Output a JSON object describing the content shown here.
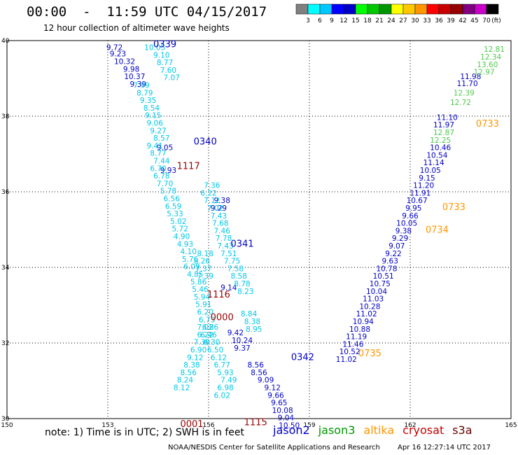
{
  "title": "00:00  -  11:59 UTC 04/15/2017",
  "subtitle": "12 hour collection of altimeter wave heights",
  "note": "note:  1) Time is in UTC; 2) SWH is in feet",
  "credit": "NOAA/NESDIS Center for Satellite Applications and Research",
  "stamp": "Apr 16 12:27:14 UTC 2017",
  "satellites": [
    {
      "name": "jason2",
      "color": "#0000c8"
    },
    {
      "name": "jason3",
      "color": "#009600"
    },
    {
      "name": "altika",
      "color": "#ff9600"
    },
    {
      "name": "cryosat",
      "color": "#c80000"
    },
    {
      "name": "s3a",
      "color": "#640000"
    }
  ],
  "legend": {
    "units": "(ft)",
    "ticks": [
      "3",
      "6",
      "9",
      "12",
      "15",
      "18",
      "21",
      "24",
      "27",
      "30",
      "33",
      "36",
      "39",
      "42",
      "45",
      "70"
    ],
    "colors": [
      "#808080",
      "#00ffff",
      "#00c8ff",
      "#0000ff",
      "#0000c8",
      "#00ff00",
      "#00c800",
      "#009600",
      "#ffff00",
      "#ffc800",
      "#ff9600",
      "#ff0000",
      "#c80000",
      "#960000",
      "#800080",
      "#c800c8",
      "#000000"
    ]
  },
  "chart_data": {
    "type": "scatter",
    "xlim": [
      150,
      165
    ],
    "ylim": [
      30,
      40
    ],
    "xticks": [
      "150",
      "153",
      "156",
      "159",
      "162",
      "165"
    ],
    "yticks": [
      "30",
      "32",
      "34",
      "36",
      "38",
      "40"
    ],
    "grid": true,
    "series": [
      {
        "name": "jason2",
        "color": "#0000c8",
        "points": [
          {
            "x": 153.2,
            "y": 39.75,
            "v": "9.72"
          },
          {
            "x": 153.3,
            "y": 39.58,
            "v": "9.23"
          },
          {
            "x": 153.5,
            "y": 39.38,
            "v": "10.32"
          },
          {
            "x": 153.7,
            "y": 39.18,
            "v": "9.98"
          },
          {
            "x": 153.8,
            "y": 38.98,
            "v": "10.37"
          },
          {
            "x": 153.9,
            "y": 38.78,
            "v": "9.39"
          },
          {
            "x": 156.4,
            "y": 35.7,
            "v": "9.38"
          },
          {
            "x": 156.3,
            "y": 35.5,
            "v": "9.29"
          },
          {
            "x": 156.6,
            "y": 33.4,
            "v": "9.14"
          },
          {
            "x": 157.4,
            "y": 31.35,
            "v": "8.56"
          },
          {
            "x": 157.5,
            "y": 31.15,
            "v": "8.56"
          },
          {
            "x": 157.7,
            "y": 30.95,
            "v": "9.09"
          },
          {
            "x": 157.9,
            "y": 30.75,
            "v": "9.12"
          },
          {
            "x": 158.0,
            "y": 30.55,
            "v": "9.66"
          },
          {
            "x": 158.1,
            "y": 30.35,
            "v": "9.65"
          },
          {
            "x": 158.2,
            "y": 30.15,
            "v": "10.08"
          },
          {
            "x": 158.3,
            "y": 29.95,
            "v": "9.04"
          },
          {
            "x": 158.4,
            "y": 29.75,
            "v": "10.50"
          },
          {
            "x": 157.0,
            "y": 32.0,
            "v": "10.24"
          },
          {
            "x": 157.0,
            "y": 31.8,
            "v": "9.37"
          },
          {
            "x": 156.8,
            "y": 32.2,
            "v": "9.42"
          },
          {
            "x": 154.7,
            "y": 37.1,
            "v": "9.05"
          },
          {
            "x": 154.8,
            "y": 36.5,
            "v": "9.93"
          },
          {
            "x": 163.1,
            "y": 37.9,
            "v": "11.10"
          },
          {
            "x": 163.0,
            "y": 37.7,
            "v": "11.97"
          },
          {
            "x": 162.9,
            "y": 37.1,
            "v": "10.46"
          },
          {
            "x": 162.8,
            "y": 36.9,
            "v": "10.54"
          },
          {
            "x": 162.7,
            "y": 36.7,
            "v": "11.14"
          },
          {
            "x": 162.6,
            "y": 36.5,
            "v": "10.05"
          },
          {
            "x": 162.5,
            "y": 36.3,
            "v": "9.15"
          },
          {
            "x": 162.4,
            "y": 36.1,
            "v": "11.20"
          },
          {
            "x": 162.3,
            "y": 35.9,
            "v": "11.91"
          },
          {
            "x": 162.2,
            "y": 35.7,
            "v": "10.67"
          },
          {
            "x": 162.1,
            "y": 35.5,
            "v": "9.95"
          },
          {
            "x": 162.0,
            "y": 35.3,
            "v": "9.66"
          },
          {
            "x": 161.9,
            "y": 35.1,
            "v": "10.05"
          },
          {
            "x": 161.8,
            "y": 34.9,
            "v": "9.38"
          },
          {
            "x": 161.7,
            "y": 34.7,
            "v": "9.29"
          },
          {
            "x": 161.6,
            "y": 34.5,
            "v": "9.07"
          },
          {
            "x": 161.5,
            "y": 34.3,
            "v": "9.22"
          },
          {
            "x": 161.4,
            "y": 34.1,
            "v": "9.63"
          },
          {
            "x": 161.3,
            "y": 33.9,
            "v": "10.78"
          },
          {
            "x": 161.2,
            "y": 33.7,
            "v": "10.51"
          },
          {
            "x": 161.1,
            "y": 33.5,
            "v": "10.75"
          },
          {
            "x": 161.0,
            "y": 33.3,
            "v": "10.04"
          },
          {
            "x": 160.9,
            "y": 33.1,
            "v": "11.03"
          },
          {
            "x": 160.8,
            "y": 32.9,
            "v": "10.28"
          },
          {
            "x": 160.7,
            "y": 32.7,
            "v": "11.02"
          },
          {
            "x": 160.6,
            "y": 32.5,
            "v": "10.94"
          },
          {
            "x": 160.5,
            "y": 32.3,
            "v": "10.88"
          },
          {
            "x": 160.4,
            "y": 32.1,
            "v": "11.19"
          },
          {
            "x": 160.3,
            "y": 31.9,
            "v": "11.46"
          },
          {
            "x": 160.2,
            "y": 31.7,
            "v": "10.52"
          },
          {
            "x": 160.1,
            "y": 31.5,
            "v": "11.02"
          },
          {
            "x": 163.8,
            "y": 38.98,
            "v": "11.98"
          },
          {
            "x": 163.7,
            "y": 38.8,
            "v": "11.70"
          }
        ]
      },
      {
        "name": "jason3",
        "color": "#50c850",
        "points": [
          {
            "x": 164.5,
            "y": 39.7,
            "v": "12.81"
          },
          {
            "x": 164.4,
            "y": 39.5,
            "v": "12.34"
          },
          {
            "x": 164.3,
            "y": 39.3,
            "v": "13.60"
          },
          {
            "x": 164.2,
            "y": 39.1,
            "v": "12.97"
          },
          {
            "x": 163.6,
            "y": 38.55,
            "v": "12.39"
          },
          {
            "x": 163.5,
            "y": 38.3,
            "v": "12.72"
          },
          {
            "x": 163.0,
            "y": 37.5,
            "v": "12.87"
          },
          {
            "x": 162.9,
            "y": 37.3,
            "v": "12.25"
          }
        ]
      },
      {
        "name": "cyan",
        "color": "#00c8e8",
        "points": [
          {
            "x": 154.4,
            "y": 39.75,
            "v": "10.05"
          },
          {
            "x": 154.6,
            "y": 39.55,
            "v": "9.10"
          },
          {
            "x": 154.7,
            "y": 39.35,
            "v": "8.77"
          },
          {
            "x": 154.8,
            "y": 39.15,
            "v": "7.60"
          },
          {
            "x": 154.9,
            "y": 38.95,
            "v": "7.07"
          },
          {
            "x": 154.0,
            "y": 38.75,
            "v": "7.99"
          },
          {
            "x": 154.1,
            "y": 38.55,
            "v": "8.79"
          },
          {
            "x": 154.2,
            "y": 38.35,
            "v": "9.35"
          },
          {
            "x": 154.3,
            "y": 38.15,
            "v": "8.54"
          },
          {
            "x": 154.35,
            "y": 37.95,
            "v": "9.15"
          },
          {
            "x": 154.4,
            "y": 37.75,
            "v": "9.06"
          },
          {
            "x": 154.5,
            "y": 37.55,
            "v": "9.27"
          },
          {
            "x": 154.6,
            "y": 37.35,
            "v": "8.57"
          },
          {
            "x": 154.4,
            "y": 37.15,
            "v": "9.41"
          },
          {
            "x": 154.5,
            "y": 36.95,
            "v": "8.77"
          },
          {
            "x": 154.6,
            "y": 36.75,
            "v": "7.44"
          },
          {
            "x": 154.5,
            "y": 36.55,
            "v": "6.70"
          },
          {
            "x": 154.6,
            "y": 36.35,
            "v": "6.78"
          },
          {
            "x": 154.7,
            "y": 36.15,
            "v": "7.70"
          },
          {
            "x": 154.8,
            "y": 35.95,
            "v": "5.78"
          },
          {
            "x": 154.9,
            "y": 35.75,
            "v": "6.56"
          },
          {
            "x": 154.95,
            "y": 35.55,
            "v": "6.59"
          },
          {
            "x": 155.0,
            "y": 35.35,
            "v": "5.33"
          },
          {
            "x": 155.1,
            "y": 35.15,
            "v": "5.02"
          },
          {
            "x": 155.15,
            "y": 34.95,
            "v": "5.72"
          },
          {
            "x": 155.2,
            "y": 34.75,
            "v": "4.90"
          },
          {
            "x": 155.3,
            "y": 34.55,
            "v": "4.93"
          },
          {
            "x": 155.4,
            "y": 34.35,
            "v": "4.10"
          },
          {
            "x": 155.45,
            "y": 34.15,
            "v": "5.76"
          },
          {
            "x": 155.5,
            "y": 33.95,
            "v": "6.09"
          },
          {
            "x": 155.6,
            "y": 33.75,
            "v": "4.85"
          },
          {
            "x": 155.7,
            "y": 33.55,
            "v": "5.86"
          },
          {
            "x": 155.75,
            "y": 33.35,
            "v": "5.46"
          },
          {
            "x": 155.8,
            "y": 33.15,
            "v": "5.94"
          },
          {
            "x": 155.85,
            "y": 32.95,
            "v": "5.91"
          },
          {
            "x": 155.9,
            "y": 32.75,
            "v": "6.20"
          },
          {
            "x": 155.95,
            "y": 32.55,
            "v": "6.73"
          },
          {
            "x": 155.9,
            "y": 32.35,
            "v": "7.02"
          },
          {
            "x": 155.9,
            "y": 32.15,
            "v": "6.22"
          },
          {
            "x": 155.8,
            "y": 31.95,
            "v": "7.39"
          },
          {
            "x": 155.7,
            "y": 31.75,
            "v": "6.90"
          },
          {
            "x": 155.6,
            "y": 31.55,
            "v": "9.12"
          },
          {
            "x": 155.5,
            "y": 31.35,
            "v": "8.38"
          },
          {
            "x": 155.4,
            "y": 31.15,
            "v": "8.56"
          },
          {
            "x": 155.3,
            "y": 30.95,
            "v": "8.24"
          },
          {
            "x": 155.2,
            "y": 30.75,
            "v": "8.12"
          },
          {
            "x": 156.4,
            "y": 30.55,
            "v": "6.02"
          },
          {
            "x": 156.5,
            "y": 30.75,
            "v": "6.98"
          },
          {
            "x": 156.6,
            "y": 30.95,
            "v": "7.49"
          },
          {
            "x": 156.5,
            "y": 31.15,
            "v": "5.93"
          },
          {
            "x": 156.4,
            "y": 31.35,
            "v": "6.77"
          },
          {
            "x": 156.3,
            "y": 31.55,
            "v": "6.12"
          },
          {
            "x": 156.2,
            "y": 31.75,
            "v": "6.50"
          },
          {
            "x": 156.1,
            "y": 31.95,
            "v": "6.30"
          },
          {
            "x": 156.0,
            "y": 32.15,
            "v": "6.46"
          },
          {
            "x": 156.05,
            "y": 32.35,
            "v": "6.86"
          },
          {
            "x": 156.1,
            "y": 36.1,
            "v": "7.36"
          },
          {
            "x": 156.0,
            "y": 35.9,
            "v": "6.22"
          },
          {
            "x": 156.1,
            "y": 35.7,
            "v": "7.12"
          },
          {
            "x": 156.2,
            "y": 35.5,
            "v": "7.02"
          },
          {
            "x": 156.3,
            "y": 35.3,
            "v": "7.43"
          },
          {
            "x": 156.35,
            "y": 35.1,
            "v": "7.68"
          },
          {
            "x": 156.4,
            "y": 34.9,
            "v": "7.46"
          },
          {
            "x": 156.45,
            "y": 34.7,
            "v": "7.78"
          },
          {
            "x": 156.5,
            "y": 34.5,
            "v": "7.43"
          },
          {
            "x": 156.6,
            "y": 34.3,
            "v": "7.51"
          },
          {
            "x": 156.7,
            "y": 34.1,
            "v": "7.75"
          },
          {
            "x": 156.8,
            "y": 33.9,
            "v": "7.58"
          },
          {
            "x": 156.9,
            "y": 33.7,
            "v": "8.58"
          },
          {
            "x": 157.0,
            "y": 33.5,
            "v": "8.78"
          },
          {
            "x": 157.1,
            "y": 33.3,
            "v": "8.23"
          },
          {
            "x": 157.2,
            "y": 32.7,
            "v": "8.84"
          },
          {
            "x": 157.3,
            "y": 32.5,
            "v": "8.38"
          },
          {
            "x": 157.35,
            "y": 32.3,
            "v": "8.95"
          },
          {
            "x": 155.9,
            "y": 34.3,
            "v": "8.18"
          },
          {
            "x": 155.8,
            "y": 34.1,
            "v": "8.26"
          },
          {
            "x": 155.85,
            "y": 33.9,
            "v": "7.37"
          },
          {
            "x": 155.9,
            "y": 33.7,
            "v": "7.39"
          }
        ]
      }
    ],
    "passes": [
      {
        "x": 154.7,
        "y": 39.82,
        "label": "0339",
        "color": "#0000c8"
      },
      {
        "x": 155.9,
        "y": 37.25,
        "label": "0340",
        "color": "#0000c8"
      },
      {
        "x": 157.0,
        "y": 34.55,
        "label": "0341",
        "color": "#0000c8"
      },
      {
        "x": 158.8,
        "y": 31.55,
        "label": "0342",
        "color": "#0000c8"
      },
      {
        "x": 155.4,
        "y": 36.6,
        "label": "1117",
        "color": "#960000"
      },
      {
        "x": 156.3,
        "y": 33.2,
        "label": "1116",
        "color": "#960000"
      },
      {
        "x": 156.4,
        "y": 32.6,
        "label": "0000",
        "color": "#960000"
      },
      {
        "x": 155.5,
        "y": 29.78,
        "label": "0001",
        "color": "#960000"
      },
      {
        "x": 157.4,
        "y": 29.82,
        "label": "1115",
        "color": "#960000"
      },
      {
        "x": 164.3,
        "y": 37.72,
        "label": "0733",
        "color": "#ff9600"
      },
      {
        "x": 163.3,
        "y": 35.52,
        "label": "0733",
        "color": "#ff9600"
      },
      {
        "x": 162.8,
        "y": 34.92,
        "label": "0734",
        "color": "#ff9600"
      },
      {
        "x": 160.8,
        "y": 31.65,
        "label": "0735",
        "color": "#ff9600"
      }
    ]
  }
}
